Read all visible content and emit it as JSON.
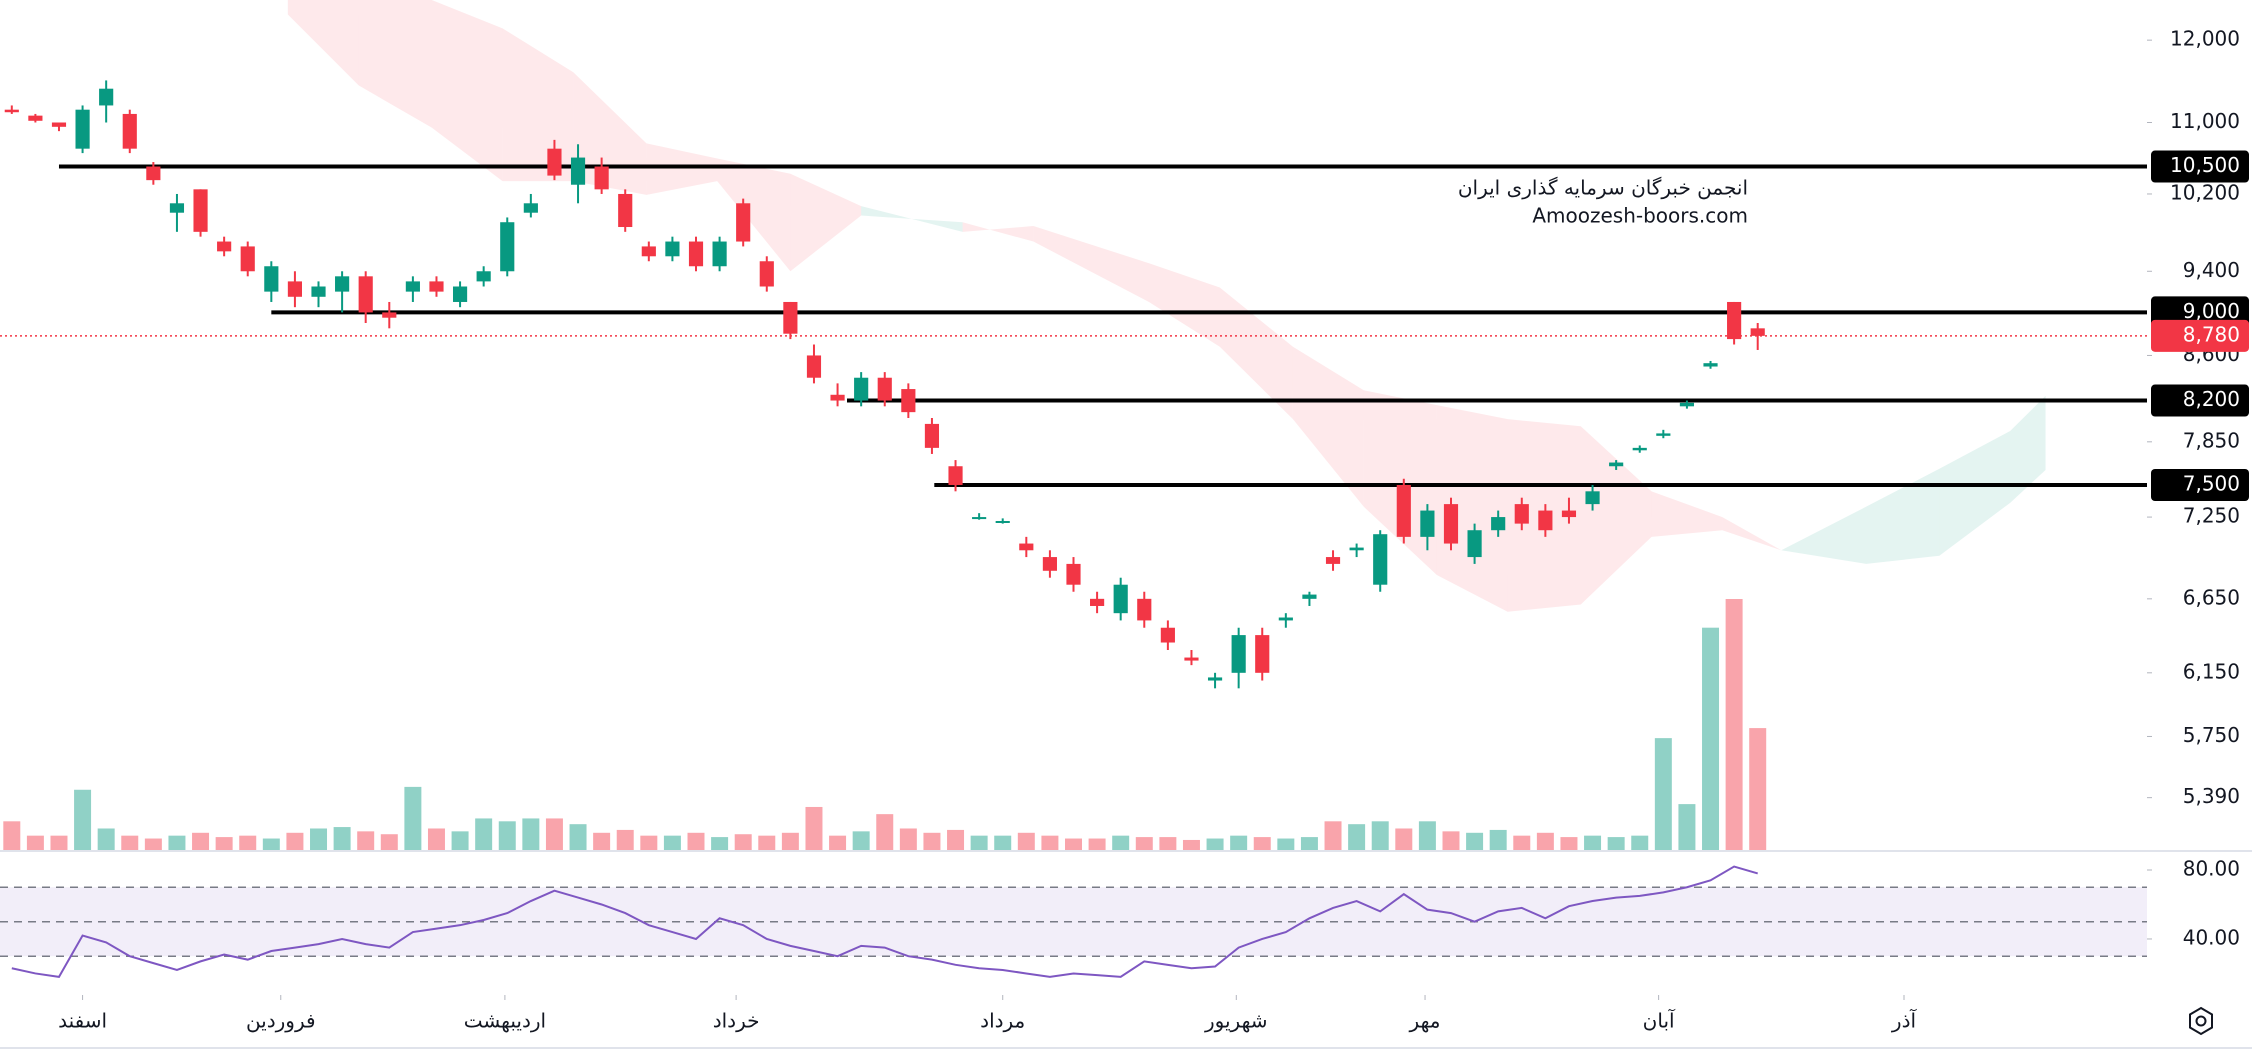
{
  "chart_data": {
    "type": "candlestick",
    "log_scale": true,
    "xlim": [
      -0.5,
      90.5
    ],
    "ylim": [
      5100,
      12520
    ],
    "yticks": [
      {
        "value": 12000,
        "label": "12,000"
      },
      {
        "value": 11000,
        "label": "11,000"
      },
      {
        "value": 10200,
        "label": "10,200"
      },
      {
        "value": 9400,
        "label": "9,400"
      },
      {
        "value": 8600,
        "label": "8,600"
      },
      {
        "value": 7850,
        "label": "7,850"
      },
      {
        "value": 7250,
        "label": "7,250"
      },
      {
        "value": 6650,
        "label": "6,650"
      },
      {
        "value": 6150,
        "label": "6,150"
      },
      {
        "value": 5750,
        "label": "5,750"
      },
      {
        "value": 5390,
        "label": "5,390"
      }
    ],
    "xticks": [
      {
        "value": 3,
        "label": "اسفند"
      },
      {
        "value": 11.4,
        "label": "فروردین"
      },
      {
        "value": 20.9,
        "label": "اردیبهشت"
      },
      {
        "value": 30.7,
        "label": "خرداد"
      },
      {
        "value": 42,
        "label": "مرداد"
      },
      {
        "value": 51.9,
        "label": "شهریور"
      },
      {
        "value": 59.9,
        "label": "مهر"
      },
      {
        "value": 69.8,
        "label": "آبان"
      },
      {
        "value": 80.2,
        "label": "آذر"
      }
    ],
    "up_color": "#089981",
    "down_color": "#f23645",
    "candles": [
      [
        11150,
        11200,
        11100,
        11120
      ],
      [
        11080,
        11100,
        11000,
        11020
      ],
      [
        11000,
        11000,
        10900,
        10950
      ],
      [
        10700,
        11200,
        10650,
        11150
      ],
      [
        11200,
        11500,
        11000,
        11400
      ],
      [
        11100,
        11150,
        10650,
        10700
      ],
      [
        10500,
        10550,
        10300,
        10350
      ],
      [
        10000,
        10200,
        9800,
        10100
      ],
      [
        10250,
        10250,
        9750,
        9800
      ],
      [
        9700,
        9750,
        9550,
        9600
      ],
      [
        9650,
        9700,
        9350,
        9400
      ],
      [
        9200,
        9500,
        9100,
        9450
      ],
      [
        9300,
        9400,
        9050,
        9150
      ],
      [
        9150,
        9300,
        9050,
        9250
      ],
      [
        9200,
        9400,
        9000,
        9350
      ],
      [
        9350,
        9400,
        8900,
        9000
      ],
      [
        9000,
        9100,
        8850,
        8950
      ],
      [
        9200,
        9350,
        9100,
        9300
      ],
      [
        9300,
        9350,
        9150,
        9200
      ],
      [
        9100,
        9300,
        9050,
        9250
      ],
      [
        9300,
        9450,
        9250,
        9400
      ],
      [
        9400,
        9950,
        9350,
        9900
      ],
      [
        10000,
        10200,
        9950,
        10100
      ],
      [
        10700,
        10800,
        10350,
        10400
      ],
      [
        10300,
        10750,
        10100,
        10600
      ],
      [
        10500,
        10600,
        10200,
        10250
      ],
      [
        10200,
        10250,
        9800,
        9850
      ],
      [
        9650,
        9700,
        9500,
        9550
      ],
      [
        9550,
        9750,
        9500,
        9700
      ],
      [
        9700,
        9750,
        9400,
        9450
      ],
      [
        9450,
        9750,
        9400,
        9700
      ],
      [
        10100,
        10150,
        9650,
        9700
      ],
      [
        9500,
        9550,
        9200,
        9250
      ],
      [
        9100,
        9100,
        8750,
        8800
      ],
      [
        8600,
        8700,
        8350,
        8400
      ],
      [
        8250,
        8350,
        8150,
        8200
      ],
      [
        8200,
        8450,
        8150,
        8400
      ],
      [
        8400,
        8450,
        8150,
        8200
      ],
      [
        8300,
        8350,
        8050,
        8100
      ],
      [
        8000,
        8050,
        7750,
        7800
      ],
      [
        7650,
        7700,
        7450,
        7500
      ],
      [
        7250,
        7280,
        7230,
        7250
      ],
      [
        7220,
        7240,
        7200,
        7220
      ],
      [
        7050,
        7100,
        6950,
        7000
      ],
      [
        6950,
        7000,
        6800,
        6850
      ],
      [
        6900,
        6950,
        6700,
        6750
      ],
      [
        6650,
        6700,
        6550,
        6600
      ],
      [
        6550,
        6800,
        6500,
        6750
      ],
      [
        6650,
        6700,
        6450,
        6500
      ],
      [
        6450,
        6500,
        6300,
        6350
      ],
      [
        6250,
        6300,
        6200,
        6230
      ],
      [
        6100,
        6150,
        6050,
        6120
      ],
      [
        6150,
        6450,
        6050,
        6400
      ],
      [
        6400,
        6450,
        6100,
        6150
      ],
      [
        6500,
        6550,
        6450,
        6520
      ],
      [
        6650,
        6700,
        6600,
        6680
      ],
      [
        6950,
        7000,
        6850,
        6900
      ],
      [
        7000,
        7050,
        6950,
        7020
      ],
      [
        6750,
        7150,
        6700,
        7120
      ],
      [
        7500,
        7550,
        7050,
        7100
      ],
      [
        7100,
        7350,
        7000,
        7300
      ],
      [
        7350,
        7400,
        7000,
        7050
      ],
      [
        6950,
        7200,
        6900,
        7150
      ],
      [
        7150,
        7300,
        7100,
        7250
      ],
      [
        7350,
        7400,
        7150,
        7200
      ],
      [
        7300,
        7350,
        7100,
        7150
      ],
      [
        7300,
        7400,
        7200,
        7250
      ],
      [
        7350,
        7500,
        7300,
        7450
      ],
      [
        7650,
        7700,
        7620,
        7680
      ],
      [
        7780,
        7820,
        7760,
        7800
      ],
      [
        7900,
        7950,
        7880,
        7920
      ],
      [
        8150,
        8200,
        8130,
        8180
      ],
      [
        8500,
        8550,
        8480,
        8530
      ],
      [
        9100,
        9100,
        8700,
        8750
      ],
      [
        8850,
        8900,
        8650,
        8780
      ]
    ],
    "volume": {
      "values": [
        2,
        1,
        1,
        4.2,
        1.5,
        1,
        0.8,
        1,
        1.2,
        0.9,
        1,
        0.8,
        1.2,
        1.5,
        1.6,
        1.3,
        1.1,
        4.4,
        1.5,
        1.3,
        2.2,
        2,
        2.2,
        2.2,
        1.8,
        1.2,
        1.4,
        1,
        1,
        1.2,
        0.9,
        1.1,
        1,
        1.2,
        3,
        1,
        1.3,
        2.5,
        1.5,
        1.2,
        1.4,
        1,
        1,
        1.2,
        1,
        0.8,
        0.8,
        1,
        0.9,
        0.9,
        0.7,
        0.8,
        1,
        0.9,
        0.8,
        0.9,
        2,
        1.8,
        2,
        1.5,
        2,
        1.3,
        1.2,
        1.4,
        1,
        1.2,
        0.9,
        1,
        0.9,
        1,
        7.8,
        3.2,
        15.5,
        17.5,
        8.5
      ]
    },
    "cloud": {
      "x": [
        11.7,
        14.7,
        17.8,
        20.8,
        23.8,
        26.9,
        29.9,
        33,
        36,
        40.3,
        43.3,
        48.2,
        51.2,
        54.3,
        57.3,
        60.4,
        63.4,
        66.5,
        69.5,
        72.5,
        75,
        78.6,
        81.7,
        84.7,
        86.2
      ],
      "span_a": [
        12330,
        11440,
        10940,
        10340,
        10340,
        10190,
        10340,
        9400,
        9970,
        9900,
        9700,
        9100,
        8680,
        8040,
        7330,
        6820,
        6560,
        6610,
        7100,
        7150,
        7000,
        7330,
        7630,
        7940,
        8240
      ],
      "span_b": [
        12600,
        12700,
        12520,
        12150,
        11600,
        10760,
        10590,
        10420,
        10070,
        9800,
        9860,
        9480,
        9240,
        8680,
        8290,
        8160,
        8040,
        7980,
        7450,
        7250,
        7000,
        6900,
        6960,
        7360,
        7620
      ]
    },
    "levels": [
      {
        "value": 10500,
        "label": "10,500",
        "from": 2
      },
      {
        "value": 9000,
        "label": "9,000",
        "from": 11
      },
      {
        "value": 8200,
        "label": "8,200",
        "from": 35.4
      },
      {
        "value": 7500,
        "label": "7,500",
        "from": 39.1
      }
    ],
    "last_price": {
      "value": 8780,
      "label": "8,780"
    },
    "watermark": [
      "انجمن خبرگان سرمایه گذاری ایران",
      "Amoozesh-boors.com"
    ],
    "rsi": {
      "color": "#7e57c2",
      "ylim": [
        7.5,
        91.6
      ],
      "yticks": [
        {
          "value": 80,
          "label": "80.00"
        },
        {
          "value": 40,
          "label": "40.00"
        }
      ],
      "bands": [
        30,
        50,
        70
      ],
      "values": [
        23,
        20,
        18,
        42,
        38,
        30,
        26,
        22,
        27,
        31,
        28,
        33,
        35,
        37,
        40,
        37,
        35,
        44,
        46,
        48,
        51,
        55,
        62,
        68,
        64,
        60,
        55,
        48,
        44,
        40,
        52,
        48,
        40,
        36,
        33,
        30,
        36,
        35,
        30,
        28,
        25,
        23,
        22,
        20,
        18,
        20,
        19,
        18,
        27,
        25,
        23,
        24,
        35,
        40,
        44,
        52,
        58,
        62,
        56,
        66,
        57,
        55,
        50,
        56,
        58,
        52,
        59,
        62,
        64,
        65,
        67,
        70,
        74,
        82,
        78
      ]
    }
  }
}
